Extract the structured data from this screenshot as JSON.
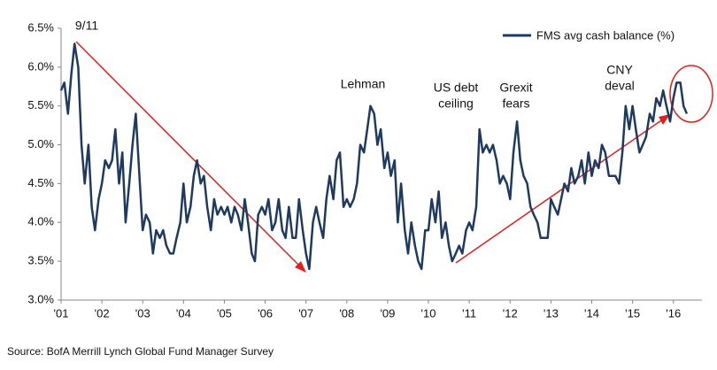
{
  "chart_data": {
    "type": "line",
    "series": [
      {
        "name": "FMS avg cash balance (%)",
        "color": "#1f3a5f",
        "x": [
          2001,
          2001.08,
          2001.17,
          2001.25,
          2001.33,
          2001.42,
          2001.5,
          2001.58,
          2001.67,
          2001.75,
          2001.83,
          2001.92,
          2002,
          2002.08,
          2002.17,
          2002.25,
          2002.33,
          2002.42,
          2002.5,
          2002.58,
          2002.67,
          2002.75,
          2002.83,
          2002.92,
          2003,
          2003.08,
          2003.17,
          2003.25,
          2003.33,
          2003.42,
          2003.5,
          2003.58,
          2003.67,
          2003.75,
          2003.83,
          2003.92,
          2004,
          2004.08,
          2004.17,
          2004.25,
          2004.33,
          2004.42,
          2004.5,
          2004.58,
          2004.67,
          2004.75,
          2004.83,
          2004.92,
          2005,
          2005.08,
          2005.17,
          2005.25,
          2005.33,
          2005.42,
          2005.5,
          2005.58,
          2005.67,
          2005.75,
          2005.83,
          2005.92,
          2006,
          2006.08,
          2006.17,
          2006.25,
          2006.33,
          2006.42,
          2006.5,
          2006.58,
          2006.67,
          2006.75,
          2006.83,
          2006.92,
          2007,
          2007.08,
          2007.17,
          2007.25,
          2007.33,
          2007.42,
          2007.5,
          2007.58,
          2007.67,
          2007.75,
          2007.83,
          2007.92,
          2008,
          2008.08,
          2008.17,
          2008.25,
          2008.33,
          2008.42,
          2008.5,
          2008.58,
          2008.67,
          2008.75,
          2008.83,
          2008.92,
          2009,
          2009.08,
          2009.17,
          2009.25,
          2009.33,
          2009.42,
          2009.5,
          2009.58,
          2009.67,
          2009.75,
          2009.83,
          2009.92,
          2010,
          2010.08,
          2010.17,
          2010.25,
          2010.33,
          2010.42,
          2010.5,
          2010.58,
          2010.67,
          2010.75,
          2010.83,
          2010.92,
          2011,
          2011.08,
          2011.17,
          2011.25,
          2011.33,
          2011.42,
          2011.5,
          2011.58,
          2011.67,
          2011.75,
          2011.83,
          2011.92,
          2012,
          2012.08,
          2012.17,
          2012.25,
          2012.33,
          2012.42,
          2012.5,
          2012.58,
          2012.67,
          2012.75,
          2012.83,
          2012.92,
          2013,
          2013.08,
          2013.17,
          2013.25,
          2013.33,
          2013.42,
          2013.5,
          2013.58,
          2013.67,
          2013.75,
          2013.83,
          2013.92,
          2014,
          2014.08,
          2014.17,
          2014.25,
          2014.33,
          2014.42,
          2014.5,
          2014.58,
          2014.67,
          2014.75,
          2014.83,
          2014.92,
          2015,
          2015.08,
          2015.17,
          2015.25,
          2015.33,
          2015.42,
          2015.5,
          2015.58,
          2015.67,
          2015.75,
          2015.83,
          2015.92,
          2016,
          2016.08,
          2016.17,
          2016.25,
          2016.33
        ],
        "values": [
          5.7,
          5.8,
          5.4,
          5.9,
          6.3,
          6.0,
          5.0,
          4.5,
          5.0,
          4.2,
          3.9,
          4.3,
          4.5,
          4.8,
          4.7,
          4.8,
          5.2,
          4.5,
          4.9,
          4.0,
          4.5,
          5.0,
          5.4,
          4.6,
          3.9,
          4.1,
          4.0,
          3.6,
          3.9,
          3.8,
          3.9,
          3.7,
          3.6,
          3.6,
          3.8,
          4.0,
          4.5,
          4.0,
          4.2,
          4.6,
          4.8,
          4.5,
          4.6,
          4.2,
          3.9,
          4.3,
          4.1,
          4.2,
          4.1,
          4.2,
          4.0,
          4.2,
          4.1,
          3.9,
          4.3,
          4.0,
          3.6,
          3.5,
          4.1,
          4.2,
          4.1,
          4.3,
          3.9,
          4.0,
          4.3,
          3.9,
          3.8,
          4.2,
          3.8,
          3.8,
          4.3,
          3.9,
          3.6,
          3.4,
          4.0,
          4.2,
          4.0,
          3.8,
          4.3,
          4.6,
          4.3,
          4.8,
          4.9,
          4.2,
          4.3,
          4.2,
          4.3,
          4.5,
          5.0,
          4.9,
          5.2,
          5.5,
          5.4,
          5.0,
          5.2,
          4.7,
          4.9,
          4.6,
          4.8,
          4.0,
          4.5,
          3.9,
          3.6,
          4.0,
          3.7,
          3.5,
          3.4,
          3.9,
          3.9,
          4.3,
          4.0,
          4.4,
          3.8,
          4.0,
          3.7,
          3.5,
          3.6,
          3.7,
          3.6,
          3.9,
          4.0,
          3.9,
          4.2,
          5.2,
          4.9,
          5.0,
          4.9,
          5.0,
          4.8,
          4.5,
          4.6,
          4.5,
          4.3,
          4.9,
          5.3,
          4.8,
          4.6,
          4.5,
          4.2,
          4.1,
          4.0,
          3.8,
          3.8,
          3.8,
          4.3,
          4.2,
          4.1,
          4.3,
          4.5,
          4.4,
          4.7,
          4.5,
          4.6,
          4.8,
          4.5,
          4.9,
          4.6,
          4.8,
          4.7,
          5.0,
          4.9,
          4.6,
          4.6,
          4.6,
          4.5,
          4.9,
          5.5,
          5.2,
          5.5,
          5.2,
          4.9,
          5.0,
          5.1,
          5.4,
          5.3,
          5.6,
          5.5,
          5.7,
          5.5,
          5.3,
          5.6,
          5.8,
          5.8,
          5.5,
          5.4
        ]
      }
    ],
    "xlim": [
      2001,
      2016.7
    ],
    "xticks": [
      {
        "value": 2001,
        "label": "'01"
      },
      {
        "value": 2002,
        "label": "'02"
      },
      {
        "value": 2003,
        "label": "'03"
      },
      {
        "value": 2004,
        "label": "'04"
      },
      {
        "value": 2005,
        "label": "'05"
      },
      {
        "value": 2006,
        "label": "'06"
      },
      {
        "value": 2007,
        "label": "'07"
      },
      {
        "value": 2008,
        "label": "'08"
      },
      {
        "value": 2009,
        "label": "'09"
      },
      {
        "value": 2010,
        "label": "'10"
      },
      {
        "value": 2011,
        "label": "'11"
      },
      {
        "value": 2012,
        "label": "'12"
      },
      {
        "value": 2013,
        "label": "'13"
      },
      {
        "value": 2014,
        "label": "'14"
      },
      {
        "value": 2015,
        "label": "'15"
      },
      {
        "value": 2016,
        "label": "'16"
      }
    ],
    "ylim": [
      3.0,
      6.5
    ],
    "yticks": [
      {
        "value": 3.0,
        "label": "3.0%"
      },
      {
        "value": 3.5,
        "label": "3.5%"
      },
      {
        "value": 4.0,
        "label": "4.0%"
      },
      {
        "value": 4.5,
        "label": "4.5%"
      },
      {
        "value": 5.0,
        "label": "5.0%"
      },
      {
        "value": 5.5,
        "label": "5.5%"
      },
      {
        "value": 6.0,
        "label": "6.0%"
      },
      {
        "value": 6.5,
        "label": "6.5%"
      }
    ],
    "annotations": [
      [
        "9/11"
      ],
      [
        "Lehman"
      ],
      [
        "US debt",
        "ceiling"
      ],
      [
        "Grexit",
        "fears"
      ],
      [
        "CNY",
        "deval"
      ]
    ],
    "source": "Source: BofA Merrill Lynch Global Fund Manager Survey"
  }
}
